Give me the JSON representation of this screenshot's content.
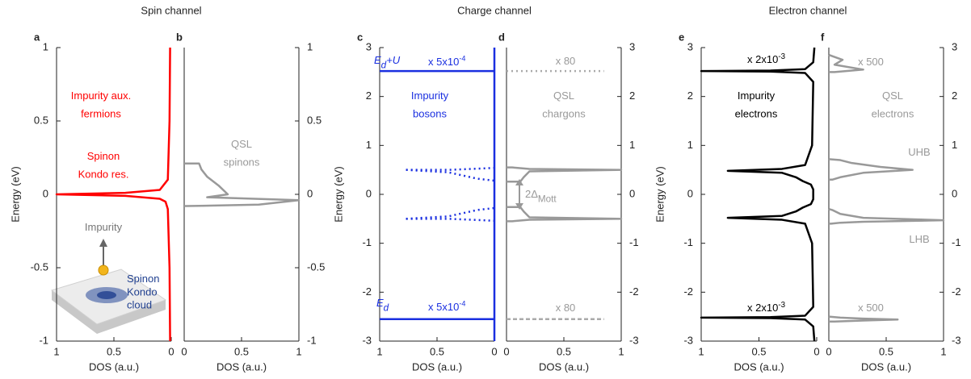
{
  "headings": [
    "Spin channel",
    "Charge channel",
    "Electron channel"
  ],
  "chart_data": [
    {
      "type": "line",
      "panel_label": "a",
      "xlabel": "DOS (a.u.)",
      "ylabel": "Energy (eV)",
      "xlim": [
        1,
        0
      ],
      "ylim": [
        -1,
        1
      ],
      "xticks": [
        1,
        0.5,
        0
      ],
      "yticks": [
        -1,
        -0.5,
        0,
        0.5,
        1
      ],
      "series": [
        {
          "color": "#ff0000",
          "x": [
            0.01,
            0.015,
            0.03,
            0.1,
            0.4,
            1,
            0.4,
            0.1,
            0.05,
            0.03,
            0.015,
            0.01
          ],
          "y": [
            1,
            0.5,
            0.1,
            0.03,
            0.01,
            0,
            -0.01,
            -0.03,
            -0.05,
            -0.1,
            -0.5,
            -1
          ]
        }
      ],
      "annotations": [
        {
          "lines": [
            "Impurity aux.",
            "fermions"
          ],
          "color": "#ff0000"
        },
        {
          "lines": [
            "Spinon",
            "Kondo res."
          ],
          "color": "#ff0000"
        },
        {
          "lines": [
            "Impurity"
          ],
          "color": "#777777"
        },
        {
          "lines": [
            "Spinon",
            "Kondo",
            "cloud"
          ],
          "color": "#1f3f8f"
        }
      ]
    },
    {
      "type": "line",
      "panel_label": "b",
      "xlabel": "DOS (a.u.)",
      "xlim": [
        0,
        1
      ],
      "ylim": [
        -1,
        1
      ],
      "xticks": [
        0,
        0.5,
        1
      ],
      "yticks": [
        -1,
        -0.5,
        0,
        0.5,
        1
      ],
      "series": [
        {
          "color": "#999999",
          "x": [
            0,
            0.13,
            0.15,
            0.2,
            0.3,
            0.38,
            0.2,
            1,
            0.65,
            0.02,
            0
          ],
          "y": [
            0.21,
            0.21,
            0.17,
            0.12,
            0.06,
            0.0,
            -0.02,
            -0.04,
            -0.07,
            -0.08,
            -0.08
          ]
        }
      ],
      "annotations": [
        {
          "lines": [
            "QSL",
            "spinons"
          ],
          "color": "#999999"
        }
      ]
    },
    {
      "type": "line",
      "panel_label": "c",
      "xlabel": "DOS (a.u.)",
      "ylabel": "Energy (eV)",
      "xlim": [
        1,
        0
      ],
      "ylim": [
        -3,
        3
      ],
      "xticks": [
        1,
        0.5,
        0
      ],
      "yticks": [
        -3,
        -2,
        -1,
        0,
        1,
        2,
        3
      ],
      "series": [
        {
          "color": "#1a2fe0",
          "x": [
            0,
            0
          ],
          "y": [
            3,
            -3
          ]
        },
        {
          "color": "#1a2fe0",
          "x": [
            1,
            0
          ],
          "y": [
            2.52,
            2.52
          ]
        },
        {
          "color": "#1a2fe0",
          "x": [
            1,
            0
          ],
          "y": [
            -2.55,
            -2.55
          ]
        },
        {
          "color": "#1a2fe0",
          "dash": "dotted",
          "x": [
            0.77,
            0.4,
            0
          ],
          "y": [
            0.5,
            0.5,
            0.54
          ]
        },
        {
          "color": "#1a2fe0",
          "dash": "dotted",
          "x": [
            0.77,
            0.4,
            0.15,
            0
          ],
          "y": [
            0.5,
            0.45,
            0.32,
            0.28
          ]
        },
        {
          "color": "#1a2fe0",
          "dash": "dotted",
          "x": [
            0.77,
            0.4,
            0.15,
            0
          ],
          "y": [
            -0.5,
            -0.45,
            -0.32,
            -0.28
          ]
        },
        {
          "color": "#1a2fe0",
          "dash": "dotted",
          "x": [
            0.77,
            0.4,
            0
          ],
          "y": [
            -0.5,
            -0.5,
            -0.54
          ]
        }
      ],
      "annotations": [
        {
          "text": "E",
          "sub": "d",
          "after": "+U",
          "color": "#1a2fe0"
        },
        {
          "text": "x 5x10",
          "sup": "-4",
          "color": "#1a2fe0"
        },
        {
          "lines": [
            "Impurity",
            "bosons"
          ],
          "color": "#1a2fe0"
        },
        {
          "text": "E",
          "sub": "d",
          "color": "#1a2fe0"
        },
        {
          "text": "x 5x10",
          "sup": "-4",
          "color": "#1a2fe0"
        }
      ]
    },
    {
      "type": "line",
      "panel_label": "d",
      "xlabel": "DOS (a.u.)",
      "xlim": [
        0,
        1
      ],
      "ylim": [
        -3,
        3
      ],
      "xticks": [
        0,
        0.5,
        1
      ],
      "yticks": [
        -3,
        -2,
        -1,
        0,
        1,
        2,
        3
      ],
      "series": [
        {
          "color": "#aaaaaa",
          "dash": "dotted",
          "x": [
            0,
            0.85
          ],
          "y": [
            2.52,
            2.52
          ]
        },
        {
          "color": "#aaaaaa",
          "dash": "dashed",
          "x": [
            0,
            0.85
          ],
          "y": [
            -2.55,
            -2.55
          ]
        },
        {
          "color": "#999999",
          "x": [
            0,
            0.05,
            0.2,
            1,
            0.2,
            0.15,
            0.12,
            0
          ],
          "y": [
            0.55,
            0.55,
            0.52,
            0.5,
            0.47,
            0.35,
            0.26,
            0.26
          ]
        },
        {
          "color": "#999999",
          "x": [
            0,
            0.12,
            0.15,
            0.2,
            1,
            0.2,
            0.05,
            0
          ],
          "y": [
            -0.26,
            -0.26,
            -0.35,
            -0.47,
            -0.5,
            -0.52,
            -0.55,
            -0.55
          ]
        }
      ],
      "annotations": [
        {
          "text": "x 80",
          "color": "#999999"
        },
        {
          "lines": [
            "QSL",
            "chargons"
          ],
          "color": "#999999"
        },
        {
          "text": "2Δ",
          "sub": "Mott",
          "color": "#999999"
        },
        {
          "text": "x 80",
          "color": "#999999"
        }
      ]
    },
    {
      "type": "line",
      "panel_label": "e",
      "xlabel": "DOS (a.u.)",
      "ylabel": "Energy (eV)",
      "xlim": [
        1,
        0
      ],
      "ylim": [
        -3,
        3
      ],
      "xticks": [
        1,
        0.5,
        0
      ],
      "yticks": [
        -3,
        -2,
        -1,
        0,
        1,
        2,
        3
      ],
      "series": [
        {
          "color": "#000000",
          "x": [
            0.02,
            0.03,
            0.1,
            0.4,
            1,
            0.4,
            0.1,
            0.03,
            0.04,
            0.1,
            0.3,
            0.77,
            0.3,
            0.18,
            0.12,
            0.05,
            0.03,
            0.03,
            0.03,
            0.05,
            0.12,
            0.18,
            0.3,
            0.77,
            0.3,
            0.1,
            0.04,
            0.03,
            0.1,
            0.4,
            1,
            0.4,
            0.1,
            0.03,
            0.02
          ],
          "y": [
            3,
            2.7,
            2.56,
            2.53,
            2.52,
            2.51,
            2.48,
            2.3,
            1,
            0.6,
            0.52,
            0.48,
            0.44,
            0.35,
            0.27,
            0.2,
            0.1,
            0,
            -0.1,
            -0.2,
            -0.27,
            -0.35,
            -0.44,
            -0.48,
            -0.52,
            -0.6,
            -1,
            -2.3,
            -2.48,
            -2.51,
            -2.52,
            -2.53,
            -2.56,
            -2.7,
            -3
          ]
        }
      ],
      "annotations": [
        {
          "text": "x 2x10",
          "sup": "-3",
          "color": "#000000"
        },
        {
          "lines": [
            "Impurity",
            "electrons"
          ],
          "color": "#000000"
        },
        {
          "text": "x 2x10",
          "sup": "-3",
          "color": "#000000"
        }
      ]
    },
    {
      "type": "line",
      "panel_label": "f",
      "xlabel": "DOS (a.u.)",
      "xlim": [
        0,
        1
      ],
      "ylim": [
        -3,
        3
      ],
      "xticks": [
        0,
        0.5,
        1
      ],
      "yticks": [
        -3,
        -2,
        -1,
        0,
        1,
        2,
        3
      ],
      "series": [
        {
          "color": "#999999",
          "x": [
            0,
            0.12,
            0.05,
            0.3,
            0.05,
            0
          ],
          "y": [
            2.85,
            2.75,
            2.65,
            2.55,
            2.5,
            2.5
          ]
        },
        {
          "color": "#999999",
          "x": [
            0,
            0.1,
            0.2,
            0.45,
            0.73,
            0.3,
            0.1,
            0.03,
            0
          ],
          "y": [
            0.72,
            0.7,
            0.64,
            0.56,
            0.5,
            0.44,
            0.35,
            0.3,
            0.3
          ]
        },
        {
          "color": "#999999",
          "x": [
            0,
            0.03,
            0.1,
            0.3,
            1,
            0.3,
            0.1,
            0.02,
            0
          ],
          "y": [
            -0.3,
            -0.32,
            -0.4,
            -0.48,
            -0.53,
            -0.56,
            -0.58,
            -0.6,
            -0.6
          ]
        },
        {
          "color": "#999999",
          "x": [
            0,
            0.1,
            0.3,
            0.6,
            0.3,
            0.05,
            0
          ],
          "y": [
            -2.5,
            -2.52,
            -2.54,
            -2.56,
            -2.58,
            -2.6,
            -2.6
          ]
        }
      ],
      "annotations": [
        {
          "text": "x 500",
          "color": "#999999"
        },
        {
          "lines": [
            "QSL",
            "electrons"
          ],
          "color": "#999999"
        },
        {
          "text": "UHB",
          "color": "#999999"
        },
        {
          "text": "LHB",
          "color": "#999999"
        },
        {
          "text": "x 500",
          "color": "#999999"
        }
      ]
    }
  ]
}
